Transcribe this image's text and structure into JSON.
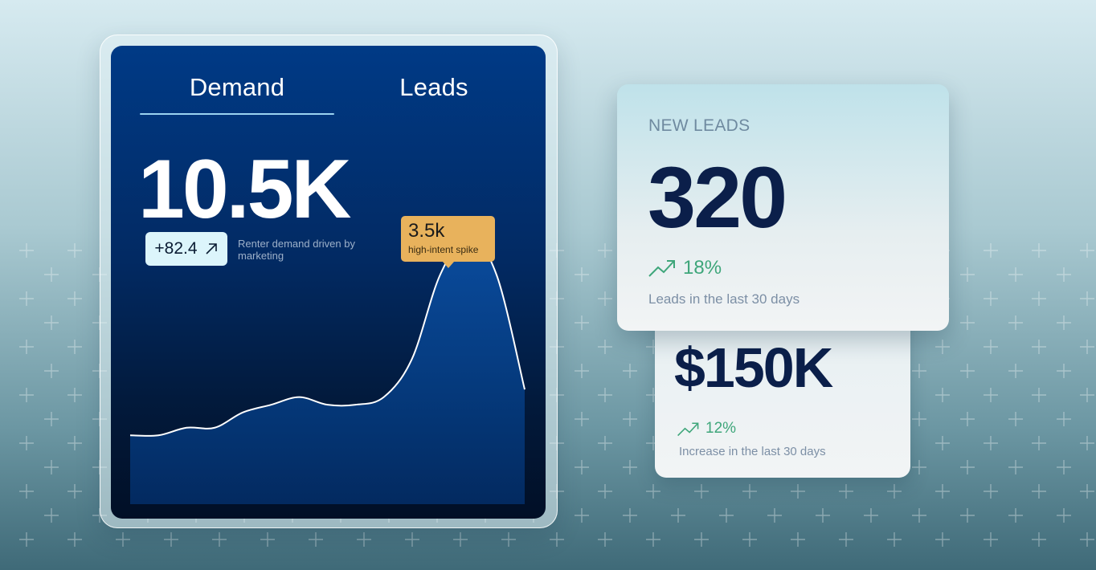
{
  "theme": {
    "accent_positive": "#3ea67a",
    "tooltip_color": "#e8b25c",
    "navy_text": "#0b1f4a"
  },
  "demand_panel": {
    "tabs": [
      {
        "label": "Demand",
        "active": true
      },
      {
        "label": "Leads",
        "active": false
      }
    ],
    "value": "10.5K",
    "delta": {
      "value": "+82.4",
      "icon": "arrow-up-right-icon"
    },
    "caption": "Renter demand driven by marketing",
    "tooltip": {
      "value": "3.5k",
      "label": "high-intent spike"
    }
  },
  "chart_data": {
    "type": "area",
    "title": "",
    "xlabel": "",
    "ylabel": "",
    "series": [
      {
        "values": [
          0.9,
          0.9,
          1.0,
          1.0,
          1.2,
          1.3,
          1.4,
          1.3,
          1.3,
          1.4,
          1.9,
          3.0,
          3.5,
          3.0,
          1.5
        ]
      }
    ],
    "peak": {
      "index": 12,
      "label": "3.5k"
    },
    "ylim": [
      0,
      4
    ]
  },
  "leads_card": {
    "label": "NEW LEADS",
    "value": "320",
    "trend": {
      "value": "18%",
      "icon": "trend-up-icon"
    },
    "caption": "Leads in the last 30 days"
  },
  "revenue_card": {
    "value": "$150K",
    "trend": {
      "value": "12%",
      "icon": "trend-up-icon"
    },
    "caption": "Increase in the last 30 days"
  }
}
